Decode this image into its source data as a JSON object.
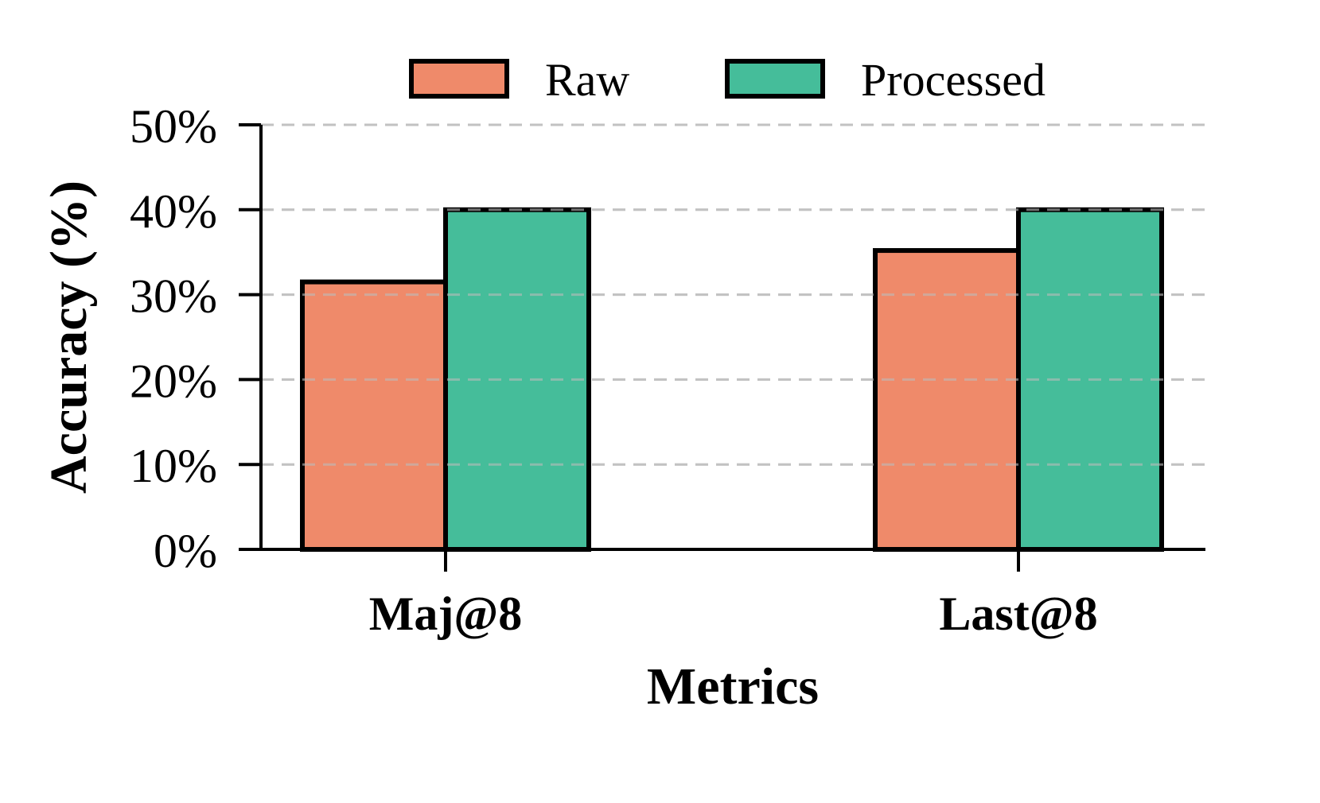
{
  "chart_data": {
    "type": "bar",
    "title": "",
    "xlabel": "Metrics",
    "ylabel": "Accuracy (%)",
    "categories": [
      "Maj@8",
      "Last@8"
    ],
    "series": [
      {
        "name": "Raw",
        "values": [
          31.5,
          35.2
        ],
        "color": "#EF8A6A"
      },
      {
        "name": "Processed",
        "values": [
          40.0,
          40.0
        ],
        "color": "#45BD9A"
      }
    ],
    "ylim": [
      0,
      50
    ],
    "yticks": [
      0,
      10,
      20,
      30,
      40,
      50
    ],
    "ytick_labels": [
      "0%",
      "10%",
      "20%",
      "30%",
      "40%",
      "50%"
    ],
    "grid": "y dashed",
    "legend_placement": "top-center"
  }
}
